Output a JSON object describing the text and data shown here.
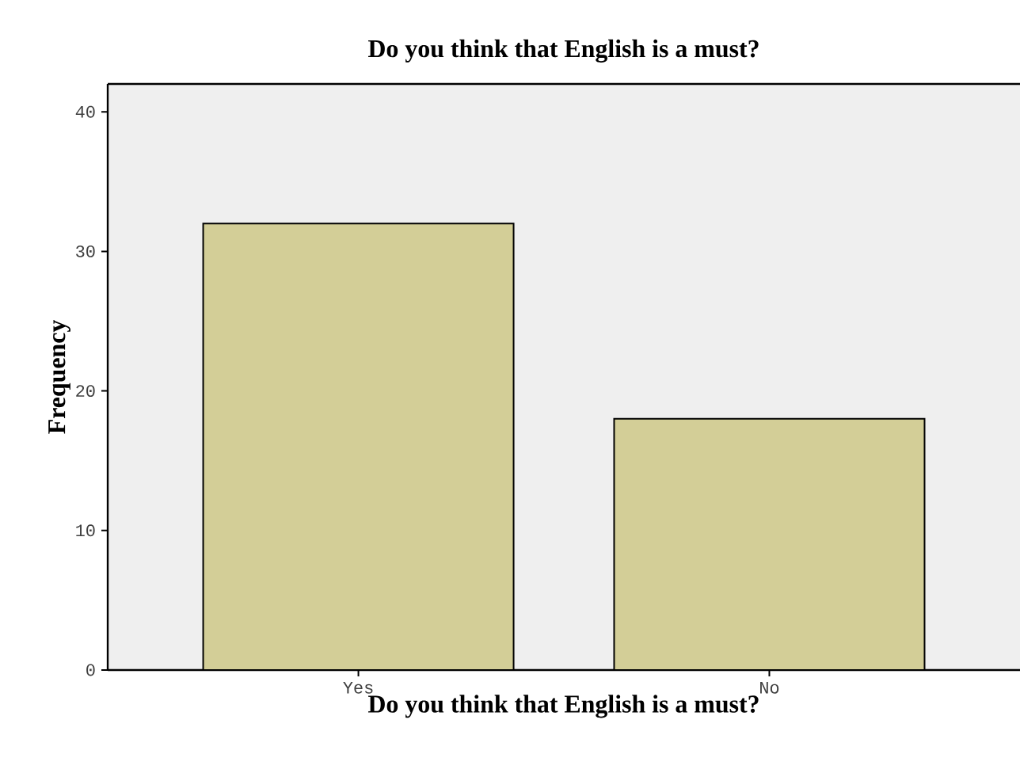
{
  "chart_data": {
    "type": "bar",
    "title": "Do you think that English is a must?",
    "xlabel": "Do you think that English is a must?",
    "ylabel": "Frequency",
    "categories": [
      "Yes",
      "No"
    ],
    "values": [
      32,
      18
    ],
    "color": "#d3ce97",
    "ylim": [
      0,
      42
    ],
    "yticks": [
      0,
      10,
      20,
      30,
      40
    ]
  }
}
